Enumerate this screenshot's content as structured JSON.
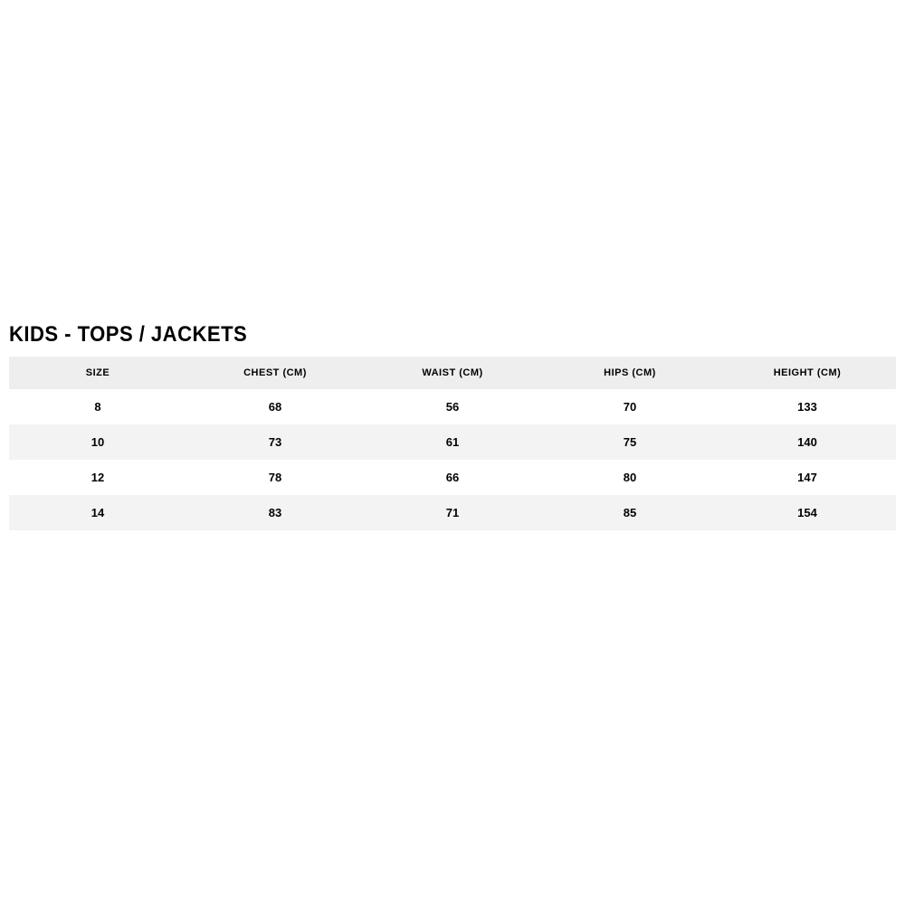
{
  "title": "KIDS - TOPS / JACKETS",
  "table": {
    "columns": [
      "SIZE",
      "CHEST (CM)",
      "WAIST (CM)",
      "HIPS (CM)",
      "HEIGHT (CM)"
    ],
    "rows": [
      [
        "8",
        "68",
        "56",
        "70",
        "133"
      ],
      [
        "10",
        "73",
        "61",
        "75",
        "140"
      ],
      [
        "12",
        "78",
        "66",
        "80",
        "147"
      ],
      [
        "14",
        "83",
        "71",
        "85",
        "154"
      ]
    ],
    "header_bg": "#eeeeee",
    "row_alt_bg": "#f3f3f3",
    "row_bg": "#ffffff",
    "text_color": "#000000",
    "header_fontsize": 11,
    "cell_fontsize": 13,
    "title_fontsize": 24
  }
}
